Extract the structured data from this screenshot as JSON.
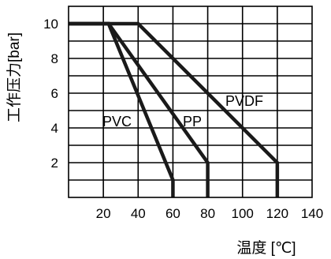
{
  "chart_data": {
    "type": "line",
    "title": "",
    "xlabel": "温度 [℃]",
    "ylabel": "工作压力[bar]",
    "xlim": [
      0,
      140
    ],
    "ylim": [
      0,
      11
    ],
    "x_ticks": [
      "20",
      "40",
      "60",
      "80",
      "100",
      "120",
      "140"
    ],
    "y_ticks": [
      "2",
      "4",
      "6",
      "8",
      "10"
    ],
    "grid": true,
    "legend": "inline labels",
    "series": [
      {
        "name": "PVC",
        "x": [
          0,
          23,
          60,
          60
        ],
        "y": [
          10,
          10,
          1,
          0
        ]
      },
      {
        "name": "PP",
        "x": [
          0,
          23,
          80,
          80
        ],
        "y": [
          10,
          10,
          2,
          0
        ]
      },
      {
        "name": "PVDF",
        "x": [
          0,
          40,
          120,
          120
        ],
        "y": [
          10,
          10,
          2,
          0
        ]
      }
    ],
    "line_color": "#1a1a1a"
  }
}
